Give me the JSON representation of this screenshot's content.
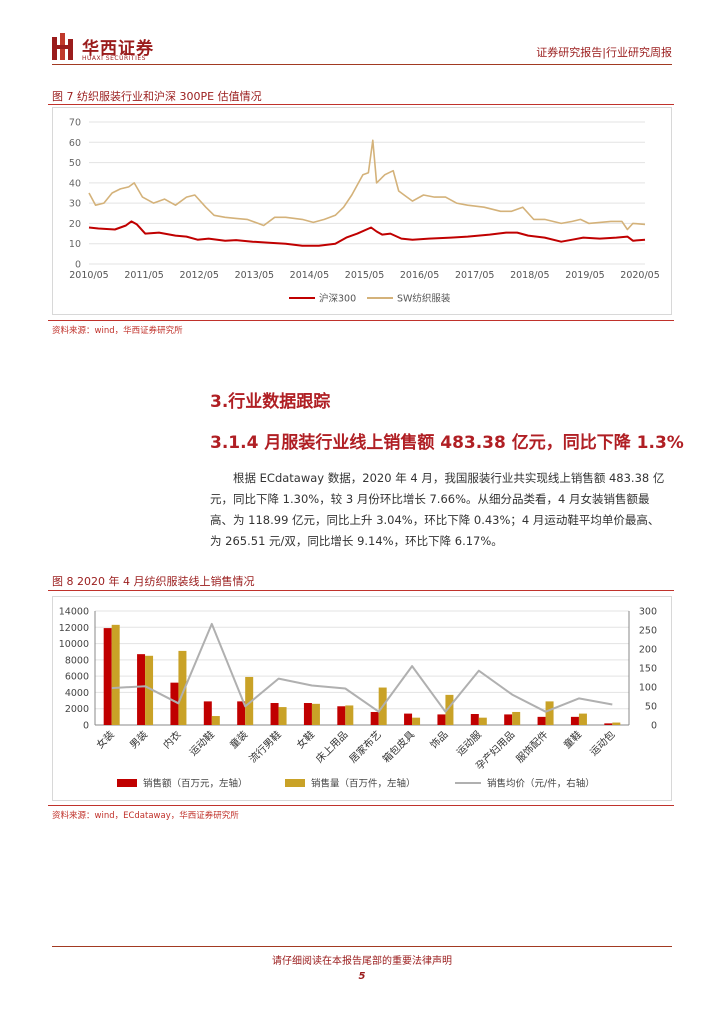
{
  "header": {
    "logo_cn": "华西证券",
    "logo_en": "HUAXI SECURITIES",
    "right_text": "证券研究报告|行业研究周报"
  },
  "figure7": {
    "title": "图 7 纺织服装行业和沪深 300PE 估值情况",
    "source": "资料来源：wind，华西证券研究所"
  },
  "section": {
    "title": "3.行业数据跟踪",
    "subtitle": "3.1.4 月服装行业线上销售额 483.38 亿元，同比下降 1.3%",
    "paragraph": "根据 ECdataway 数据，2020 年 4 月，我国服装行业共实现线上销售额 483.38 亿元，同比下降 1.30%，较 3 月份环比增长 7.66%。从细分品类看，4 月女装销售额最高、为 118.99 亿元，同比上升 3.04%，环比下降 0.43%；4 月运动鞋平均单价最高、为 265.51 元/双，同比增长 9.14%，环比下降 6.17%。"
  },
  "figure8": {
    "title": "图 8  2020 年 4 月纺织服装线上销售情况",
    "source": "资料来源：wind，ECdataway，华西证券研究所"
  },
  "footer": {
    "notice": "请仔细阅读在本报告尾部的重要法律声明",
    "page": "5"
  },
  "colors": {
    "red": "#c00000",
    "gold": "#c9a227",
    "tan": "#d4b27a",
    "gray": "#b0b0b0",
    "brand": "#9a1c1c"
  },
  "chart_data": [
    {
      "type": "line",
      "x_ticks": [
        "2010/05",
        "2011/05",
        "2012/05",
        "2013/05",
        "2014/05",
        "2015/05",
        "2016/05",
        "2017/05",
        "2018/05",
        "2019/05",
        "2020/05"
      ],
      "ylim": [
        0,
        70
      ],
      "y_ticks": [
        0,
        10,
        20,
        30,
        40,
        50,
        60,
        70
      ],
      "grid": true,
      "legend_position": "bottom",
      "series": [
        {
          "name": "沪深300",
          "color": "#c00000",
          "points": [
            [
              2010.33,
              18
            ],
            [
              2010.5,
              17.5
            ],
            [
              2010.8,
              17
            ],
            [
              2011.0,
              19
            ],
            [
              2011.1,
              21
            ],
            [
              2011.2,
              19.5
            ],
            [
              2011.35,
              15
            ],
            [
              2011.6,
              15.5
            ],
            [
              2011.9,
              14
            ],
            [
              2012.1,
              13.5
            ],
            [
              2012.3,
              12
            ],
            [
              2012.5,
              12.5
            ],
            [
              2012.8,
              11.5
            ],
            [
              2013.0,
              11.8
            ],
            [
              2013.3,
              11
            ],
            [
              2013.6,
              10.5
            ],
            [
              2013.9,
              10
            ],
            [
              2014.2,
              9
            ],
            [
              2014.5,
              9
            ],
            [
              2014.8,
              10
            ],
            [
              2015.0,
              13
            ],
            [
              2015.2,
              15
            ],
            [
              2015.45,
              18
            ],
            [
              2015.55,
              16
            ],
            [
              2015.65,
              14.5
            ],
            [
              2015.8,
              15
            ],
            [
              2016.0,
              12.5
            ],
            [
              2016.2,
              12
            ],
            [
              2016.5,
              12.5
            ],
            [
              2016.9,
              13
            ],
            [
              2017.2,
              13.5
            ],
            [
              2017.6,
              14.5
            ],
            [
              2017.9,
              15.5
            ],
            [
              2018.1,
              15.5
            ],
            [
              2018.3,
              14
            ],
            [
              2018.6,
              13
            ],
            [
              2018.9,
              11
            ],
            [
              2019.1,
              12
            ],
            [
              2019.3,
              13
            ],
            [
              2019.6,
              12.5
            ],
            [
              2019.9,
              13
            ],
            [
              2020.1,
              13.5
            ],
            [
              2020.2,
              11.5
            ],
            [
              2020.42,
              12
            ]
          ]
        },
        {
          "name": "SW纺织服装",
          "color": "#d4b27a",
          "points": [
            [
              2010.33,
              35
            ],
            [
              2010.45,
              29
            ],
            [
              2010.6,
              30
            ],
            [
              2010.75,
              35
            ],
            [
              2010.9,
              37
            ],
            [
              2011.05,
              38
            ],
            [
              2011.15,
              40
            ],
            [
              2011.3,
              33
            ],
            [
              2011.5,
              30
            ],
            [
              2011.7,
              32
            ],
            [
              2011.9,
              29
            ],
            [
              2012.1,
              33
            ],
            [
              2012.25,
              34
            ],
            [
              2012.45,
              28
            ],
            [
              2012.6,
              24
            ],
            [
              2012.8,
              23
            ],
            [
              2013.0,
              22.5
            ],
            [
              2013.2,
              22
            ],
            [
              2013.4,
              20
            ],
            [
              2013.5,
              19
            ],
            [
              2013.7,
              23
            ],
            [
              2013.9,
              23
            ],
            [
              2014.2,
              22
            ],
            [
              2014.4,
              20.5
            ],
            [
              2014.6,
              22
            ],
            [
              2014.8,
              24
            ],
            [
              2014.95,
              28
            ],
            [
              2015.1,
              34
            ],
            [
              2015.3,
              44
            ],
            [
              2015.4,
              45
            ],
            [
              2015.48,
              61
            ],
            [
              2015.55,
              40
            ],
            [
              2015.7,
              44
            ],
            [
              2015.85,
              46
            ],
            [
              2015.95,
              36
            ],
            [
              2016.1,
              33
            ],
            [
              2016.2,
              31
            ],
            [
              2016.4,
              34
            ],
            [
              2016.6,
              33
            ],
            [
              2016.8,
              33
            ],
            [
              2017.0,
              30
            ],
            [
              2017.2,
              29
            ],
            [
              2017.5,
              28
            ],
            [
              2017.8,
              26
            ],
            [
              2018.0,
              26
            ],
            [
              2018.2,
              28
            ],
            [
              2018.4,
              22
            ],
            [
              2018.6,
              22
            ],
            [
              2018.9,
              20
            ],
            [
              2019.1,
              21
            ],
            [
              2019.25,
              22
            ],
            [
              2019.4,
              20
            ],
            [
              2019.6,
              20.5
            ],
            [
              2019.8,
              21
            ],
            [
              2020.0,
              21
            ],
            [
              2020.1,
              17
            ],
            [
              2020.2,
              20
            ],
            [
              2020.42,
              19.5
            ]
          ]
        }
      ]
    },
    {
      "type": "bar",
      "categories": [
        "女装",
        "男装",
        "内衣",
        "运动鞋",
        "童装",
        "流行男鞋",
        "女鞋",
        "床上用品",
        "居家布艺",
        "箱包皮具",
        "饰品",
        "运动服",
        "孕产妇用品",
        "服饰配件",
        "童鞋",
        "运动包"
      ],
      "ylim": [
        0,
        14000
      ],
      "y_ticks": [
        0,
        2000,
        4000,
        6000,
        8000,
        10000,
        12000,
        14000
      ],
      "y2lim": [
        0,
        300
      ],
      "y2_ticks": [
        0,
        50,
        100,
        150,
        200,
        250,
        300
      ],
      "grid": true,
      "legend_position": "bottom",
      "series": [
        {
          "name": "销售额（百万元，左轴）",
          "axis": "left",
          "color": "#c00000",
          "values": [
            11900,
            8700,
            5200,
            2900,
            2900,
            2700,
            2700,
            2300,
            1600,
            1400,
            1300,
            1350,
            1300,
            1000,
            1000,
            200
          ]
        },
        {
          "name": "销售量（百万件，左轴）",
          "axis": "left",
          "color": "#c9a227",
          "values": [
            12300,
            8500,
            9100,
            1100,
            5900,
            2200,
            2600,
            2400,
            4600,
            900,
            3700,
            900,
            1600,
            2900,
            1400,
            300
          ]
        },
        {
          "name": "销售均价（元/件，右轴）",
          "axis": "right",
          "color": "#b0b0b0",
          "values": [
            97,
            102,
            57,
            266,
            49,
            122,
            104,
            96,
            35,
            155,
            35,
            143,
            80,
            35,
            70,
            54
          ]
        }
      ]
    }
  ]
}
